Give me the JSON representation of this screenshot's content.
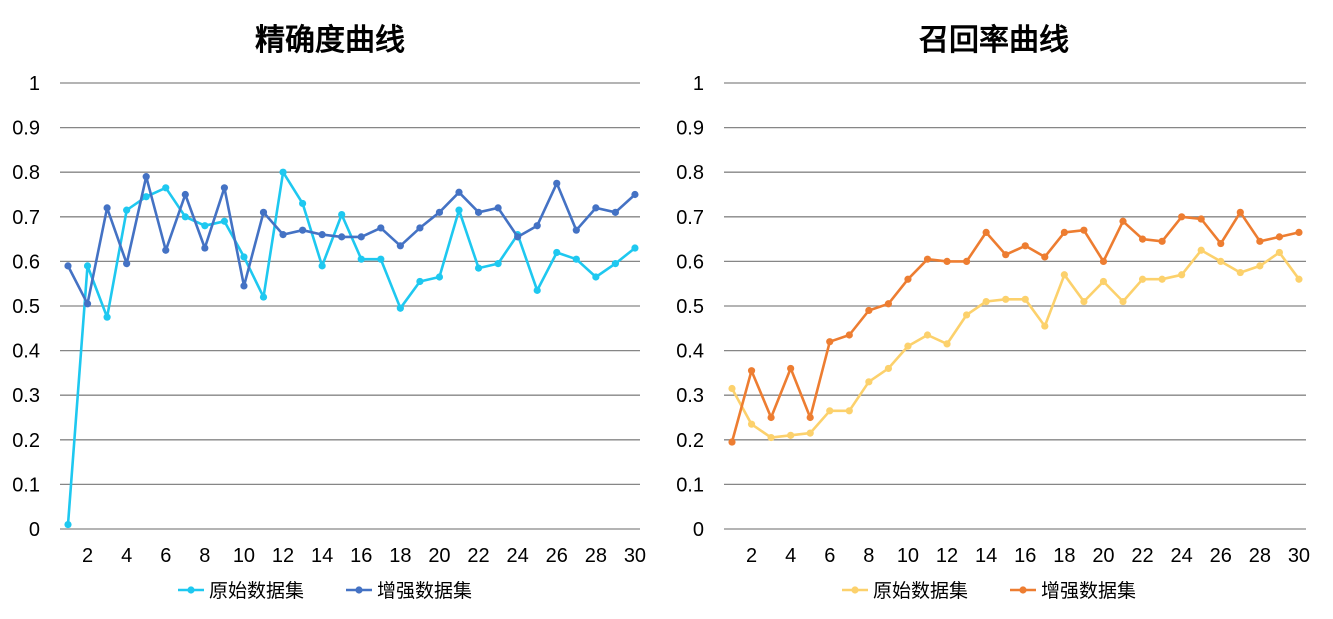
{
  "chart_data": [
    {
      "type": "line",
      "title": "精确度曲线",
      "x": [
        1,
        2,
        3,
        4,
        5,
        6,
        7,
        8,
        9,
        10,
        11,
        12,
        13,
        14,
        15,
        16,
        17,
        18,
        19,
        20,
        21,
        22,
        23,
        24,
        25,
        26,
        27,
        28,
        29,
        30
      ],
      "x_tick_labels": [
        "2",
        "4",
        "6",
        "8",
        "10",
        "12",
        "14",
        "16",
        "18",
        "20",
        "22",
        "24",
        "26",
        "28",
        "30"
      ],
      "y_tick_labels": [
        "0",
        "0.1",
        "0.2",
        "0.3",
        "0.4",
        "0.5",
        "0.6",
        "0.7",
        "0.8",
        "0.9",
        "1"
      ],
      "ylim": [
        0,
        1
      ],
      "grid": true,
      "legend_position": "bottom",
      "series": [
        {
          "name": "原始数据集",
          "color": "#1ec8f0",
          "values": [
            0.01,
            0.59,
            0.475,
            0.715,
            0.745,
            0.765,
            0.7,
            0.68,
            0.69,
            0.61,
            0.52,
            0.8,
            0.73,
            0.59,
            0.705,
            0.605,
            0.605,
            0.495,
            0.555,
            0.565,
            0.715,
            0.585,
            0.595,
            0.66,
            0.535,
            0.62,
            0.605,
            0.565,
            0.595,
            0.63
          ]
        },
        {
          "name": "增强数据集",
          "color": "#4472c4",
          "values": [
            0.59,
            0.505,
            0.72,
            0.595,
            0.79,
            0.625,
            0.75,
            0.63,
            0.765,
            0.545,
            0.71,
            0.66,
            0.67,
            0.66,
            0.655,
            0.655,
            0.675,
            0.635,
            0.675,
            0.71,
            0.755,
            0.71,
            0.72,
            0.655,
            0.68,
            0.775,
            0.67,
            0.72,
            0.71,
            0.75
          ]
        }
      ]
    },
    {
      "type": "line",
      "title": "召回率曲线",
      "x": [
        1,
        2,
        3,
        4,
        5,
        6,
        7,
        8,
        9,
        10,
        11,
        12,
        13,
        14,
        15,
        16,
        17,
        18,
        19,
        20,
        21,
        22,
        23,
        24,
        25,
        26,
        27,
        28,
        29,
        30
      ],
      "x_tick_labels": [
        "2",
        "4",
        "6",
        "8",
        "10",
        "12",
        "14",
        "16",
        "18",
        "20",
        "22",
        "24",
        "26",
        "28",
        "30"
      ],
      "y_tick_labels": [
        "0",
        "0.1",
        "0.2",
        "0.3",
        "0.4",
        "0.5",
        "0.6",
        "0.7",
        "0.8",
        "0.9",
        "1"
      ],
      "ylim": [
        0,
        1
      ],
      "grid": true,
      "legend_position": "bottom",
      "series": [
        {
          "name": "原始数据集",
          "color": "#fcd16c",
          "values": [
            0.315,
            0.235,
            0.205,
            0.21,
            0.215,
            0.265,
            0.265,
            0.33,
            0.36,
            0.41,
            0.435,
            0.415,
            0.48,
            0.51,
            0.515,
            0.515,
            0.455,
            0.57,
            0.51,
            0.555,
            0.51,
            0.56,
            0.56,
            0.57,
            0.625,
            0.6,
            0.575,
            0.59,
            0.62,
            0.56
          ]
        },
        {
          "name": "增强数据集",
          "color": "#ed7d31",
          "values": [
            0.195,
            0.355,
            0.25,
            0.36,
            0.25,
            0.42,
            0.435,
            0.49,
            0.505,
            0.56,
            0.605,
            0.6,
            0.6,
            0.665,
            0.615,
            0.635,
            0.61,
            0.665,
            0.67,
            0.6,
            0.69,
            0.65,
            0.645,
            0.7,
            0.695,
            0.64,
            0.71,
            0.645,
            0.655,
            0.665
          ]
        }
      ]
    }
  ]
}
